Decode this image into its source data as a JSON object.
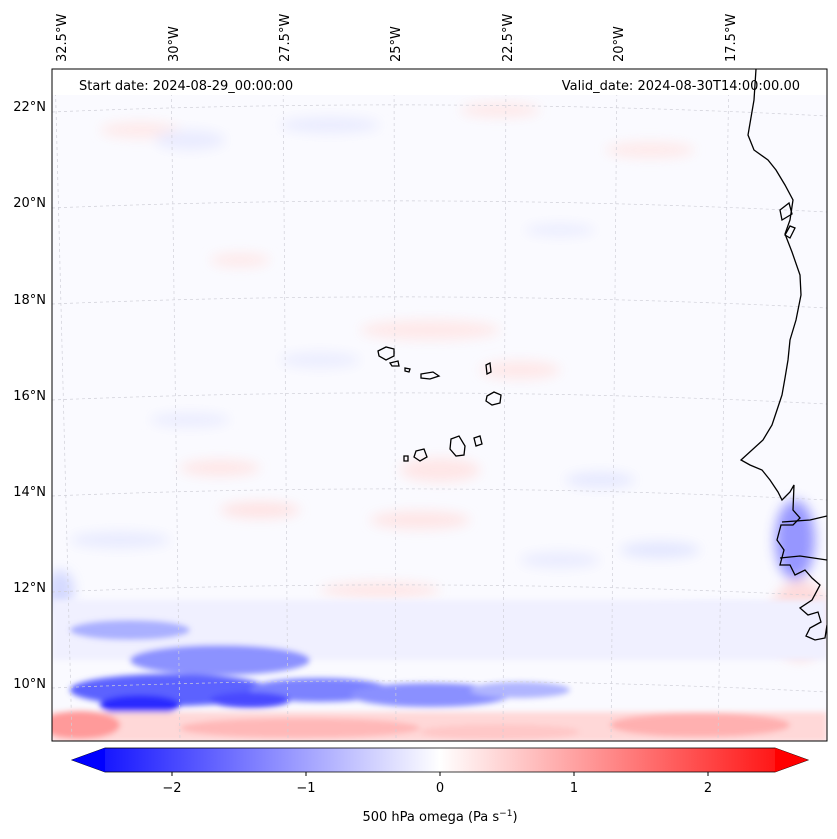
{
  "header": {
    "start_date": "Start date: 2024-08-29_00:00:00",
    "valid_date": "Valid_date: 2024-08-30T14:00:00.00"
  },
  "chart_data": {
    "type": "heatmap",
    "field": "500 hPa omega",
    "longitude_ticks": [
      "32.5°W",
      "30°W",
      "27.5°W",
      "25°W",
      "22.5°W",
      "20°W",
      "17.5°W"
    ],
    "latitude_ticks": [
      "22°N",
      "20°N",
      "18°N",
      "16°N",
      "14°N",
      "12°N",
      "10°N"
    ],
    "colorbar": {
      "label_main": "500 hPa omega (Pa s",
      "label_exp": "−1",
      "label_end": ")",
      "ticks": [
        "−2",
        "−1",
        "0",
        "1",
        "2"
      ],
      "tick_values": [
        -2,
        -1,
        0,
        1,
        2
      ],
      "range": [
        -2.5,
        2.5
      ],
      "extend": "both",
      "colormap": "bwr",
      "low_color": "#0000ff",
      "mid_color": "#ffffff",
      "high_color": "#ff0000"
    },
    "gridlines": true,
    "coastlines": true
  }
}
